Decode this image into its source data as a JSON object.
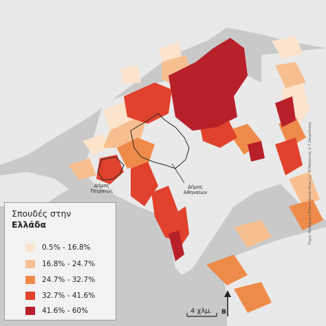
{
  "map": {
    "background_color": "#c9c9c9",
    "land_color": "#e9e9e9",
    "classes": [
      {
        "range": "0.5% - 16.8%",
        "color": "#fbe3cc"
      },
      {
        "range": "16.8% - 24.7%",
        "color": "#f7bf90"
      },
      {
        "range": "24.7% - 32.7%",
        "color": "#ef8b4a"
      },
      {
        "range": "32.7% - 41.6%",
        "color": "#e0422d"
      },
      {
        "range": "41.6% - 60%",
        "color": "#b8202a"
      }
    ]
  },
  "legend": {
    "title_line1": "Σπουδές στην",
    "title_line2": "Ελλάδα"
  },
  "labels": {
    "piraeus_line1": "Δήμος",
    "piraeus_line2": "Πειραιώς",
    "athens_line1": "Δήμος",
    "athens_line2": "Αθηναίων"
  },
  "scale": {
    "text": "4 χλμ."
  },
  "north_arrow": {
    "letter": "Β"
  },
  "credit": {
    "text": "Πηγή: Πανδήμιο | Athens Social Atlas | © Θ.Μαλούτας & Τ.Σπυρελλάκη (2019)"
  }
}
